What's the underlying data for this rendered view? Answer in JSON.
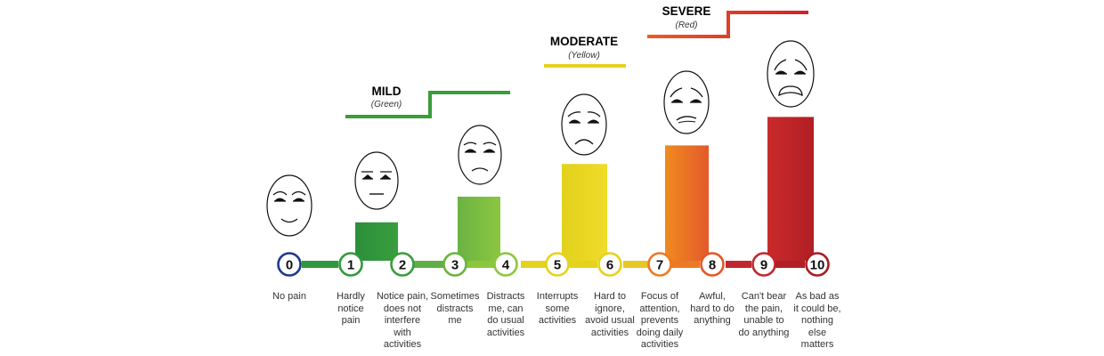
{
  "colors": {
    "green": "#2f9a3d",
    "light_green": "#8cc63f",
    "yellow": "#e5d21e",
    "orange": "#ea7a24",
    "red": "#c1272d",
    "deep_red": "#a81c22",
    "blue": "#1f3a8a"
  },
  "categories": [
    {
      "title": "MILD",
      "sub": "(Green)",
      "color": "#2f9a3d"
    },
    {
      "title": "MODERATE",
      "sub": "(Yellow)",
      "color": "#e5d21e"
    },
    {
      "title": "SEVERE",
      "sub": "(Red)",
      "color": "#e8392b"
    }
  ],
  "levels": [
    {
      "number": "0",
      "description": "No pain",
      "ring_color": "#1f3a8a",
      "bar_level": 0,
      "face": "happy"
    },
    {
      "number": "1",
      "description": "Hardly\nnotice\npain",
      "ring_color": "#2f9a3d",
      "bar_level": 0.22,
      "face": "neutral"
    },
    {
      "number": "2",
      "description": "Notice pain,\ndoes not\ninterfere\nwith\nactivities",
      "ring_color": "#3a9c3a",
      "bar_level": 0,
      "face": "none"
    },
    {
      "number": "3",
      "description": "Sometimes\ndistracts\nme",
      "ring_color": "#6ab343",
      "bar_level": 0.4,
      "face": "slight-frown"
    },
    {
      "number": "4",
      "description": "Distracts\nme, can\ndo usual\nactivities",
      "ring_color": "#8cc63f",
      "bar_level": 0,
      "face": "none"
    },
    {
      "number": "5",
      "description": "Interrupts\nsome\nactivities",
      "ring_color": "#e5d21e",
      "bar_level": 0.63,
      "face": "frown"
    },
    {
      "number": "6",
      "description": "Hard to\nignore,\navoid usual\nactivities",
      "ring_color": "#e5d21e",
      "bar_level": 0,
      "face": "none"
    },
    {
      "number": "7",
      "description": "Focus of\nattention,\nprevents\ndoing daily\nactivities",
      "ring_color": "#ea7a24",
      "bar_level": 0.76,
      "face": "grimace"
    },
    {
      "number": "8",
      "description": "Awful,\nhard to do\nanything",
      "ring_color": "#e3562a",
      "bar_level": 0,
      "face": "none"
    },
    {
      "number": "9",
      "description": "Can't bear\nthe pain,\nunable to\ndo anything",
      "ring_color": "#c1272d",
      "bar_level": 0.96,
      "face": "crying"
    },
    {
      "number": "10",
      "description": "As bad as\nit could be,\nnothing\nelse\nmatters",
      "ring_color": "#a81c22",
      "bar_level": 0,
      "face": "none"
    }
  ]
}
